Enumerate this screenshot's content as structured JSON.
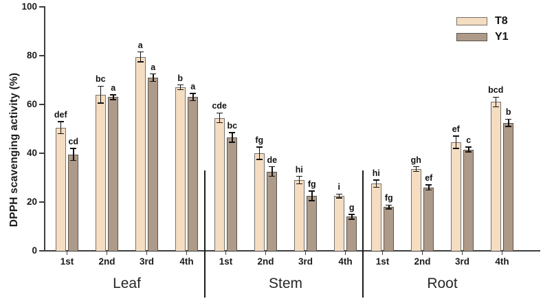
{
  "colors": {
    "t8_fill": "#f5ddc2",
    "t8_border": "#75706a",
    "y1_fill": "#ae9a89",
    "y1_border": "#59534d",
    "axis": "#3d3d3d",
    "error_bar": "#111111",
    "text": "#1a1a1a"
  },
  "chart_data": {
    "type": "bar",
    "title": "",
    "xlabel": "",
    "ylabel": "DPPH scavenging activity (%)",
    "ylim": [
      0,
      100
    ],
    "y_ticks": [
      0,
      20,
      40,
      60,
      80,
      100
    ],
    "grid": false,
    "legend_position": "top-right",
    "groups": [
      "Leaf",
      "Stem",
      "Root"
    ],
    "categories": [
      "1st",
      "2nd",
      "3rd",
      "4th"
    ],
    "series": [
      {
        "name": "T8",
        "values": {
          "Leaf": [
            50.5,
            64,
            79.5,
            67
          ],
          "Stem": [
            54.5,
            40,
            29,
            22.5
          ],
          "Root": [
            27.5,
            33.5,
            44.5,
            61
          ]
        },
        "errors": {
          "Leaf": [
            2.5,
            3.5,
            2,
            1
          ],
          "Stem": [
            2,
            2.5,
            1.5,
            0.8
          ],
          "Root": [
            1.5,
            1,
            2.5,
            2
          ]
        },
        "letters": {
          "Leaf": [
            "def",
            "bc",
            "a",
            "b"
          ],
          "Stem": [
            "cde",
            "fg",
            "hi",
            "i"
          ],
          "Root": [
            "hi",
            "gh",
            "ef",
            "bcd"
          ]
        }
      },
      {
        "name": "Y1",
        "values": {
          "Leaf": [
            39.5,
            63,
            71,
            63
          ],
          "Stem": [
            46.5,
            32.5,
            22.5,
            14
          ],
          "Root": [
            18,
            26,
            41.5,
            52.5
          ]
        },
        "errors": {
          "Leaf": [
            2.5,
            1,
            1.5,
            1.5
          ],
          "Stem": [
            2,
            2,
            2,
            1
          ],
          "Root": [
            0.8,
            1,
            1,
            1.5
          ]
        },
        "letters": {
          "Leaf": [
            "cd",
            "a",
            "a",
            "a"
          ],
          "Stem": [
            "bc",
            "de",
            "fg",
            "g"
          ],
          "Root": [
            "fg",
            "ef",
            "c",
            "b"
          ]
        }
      }
    ]
  }
}
